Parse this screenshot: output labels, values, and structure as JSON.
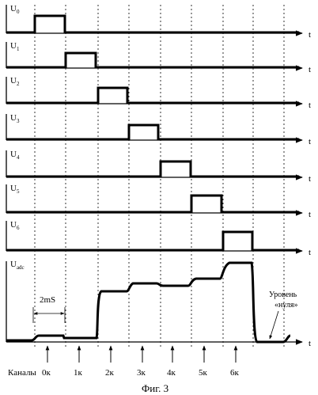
{
  "figure": {
    "caption": "Фиг. 3"
  },
  "channel_signals": [
    {
      "label_main": "U",
      "label_sub": "0"
    },
    {
      "label_main": "U",
      "label_sub": "1"
    },
    {
      "label_main": "U",
      "label_sub": "2"
    },
    {
      "label_main": "U",
      "label_sub": "3"
    },
    {
      "label_main": "U",
      "label_sub": "4"
    },
    {
      "label_main": "U",
      "label_sub": "5"
    },
    {
      "label_main": "U",
      "label_sub": "6"
    }
  ],
  "adc": {
    "label_main": "U",
    "label_sub": "adc",
    "interval_label": "2mS",
    "zero_level_line1": "Уровень",
    "zero_level_line2": "«нуля»"
  },
  "time_axis_label": "t",
  "channels_row": {
    "title": "Каналы",
    "ticks": [
      "0к",
      "1к",
      "2к",
      "3к",
      "4к",
      "5к",
      "6к"
    ]
  }
}
